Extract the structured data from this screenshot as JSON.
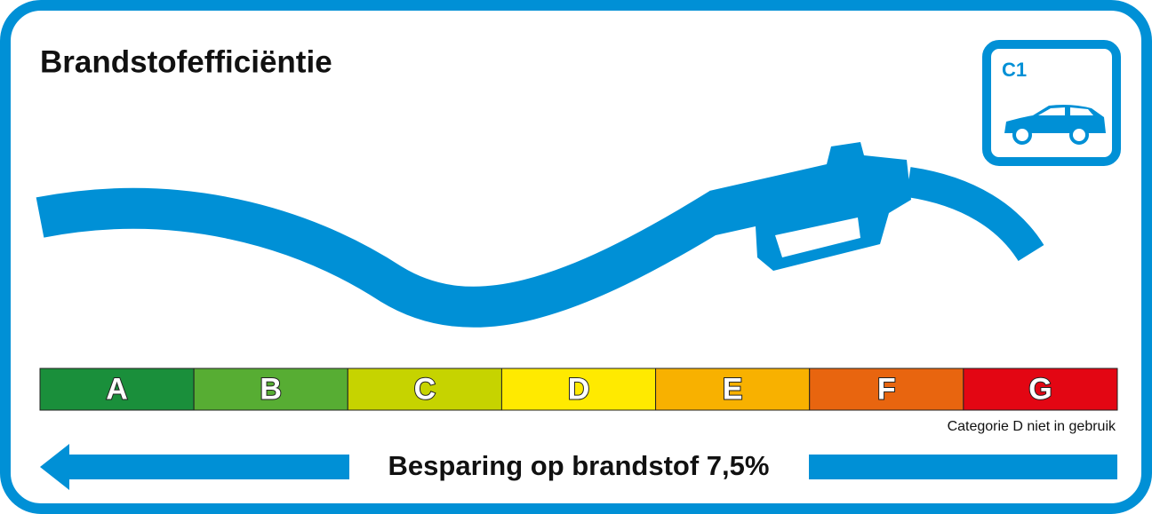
{
  "title": "Brandstofefficiëntie",
  "badge": "C1",
  "classes": [
    {
      "letter": "A",
      "color": "#1a8f3b"
    },
    {
      "letter": "B",
      "color": "#57ad33"
    },
    {
      "letter": "C",
      "color": "#c6d300"
    },
    {
      "letter": "D",
      "color": "#ffea00"
    },
    {
      "letter": "E",
      "color": "#f8b100"
    },
    {
      "letter": "F",
      "color": "#e8650f"
    },
    {
      "letter": "G",
      "color": "#e30613"
    }
  ],
  "note": "Categorie D niet in gebruik",
  "footer": "Besparing op brandstof 7,5%"
}
